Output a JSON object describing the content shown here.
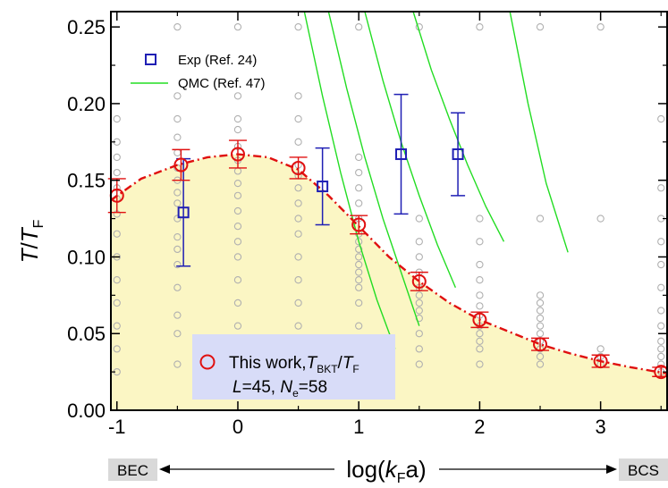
{
  "chart_data": {
    "type": "scatter",
    "xlim": [
      -1.05,
      3.55
    ],
    "ylim": [
      0,
      0.26
    ],
    "xticks": [
      -1,
      0,
      1,
      2,
      3
    ],
    "xtick_labels": [
      "-1",
      "0",
      "1",
      "2",
      "3"
    ],
    "yticks": [
      0,
      0.05,
      0.1,
      0.15,
      0.2,
      0.25
    ],
    "ytick_labels": [
      "0.00",
      "0.05",
      "0.10",
      "0.15",
      "0.20",
      "0.25"
    ],
    "xlabel": {
      "pre": "log(",
      "italic": "k",
      "sub": "F",
      "post": "a)"
    },
    "ylabel": {
      "italic": "T",
      "slash": "/",
      "italic2": "T",
      "sub": "F"
    },
    "end_labels": {
      "left": "BEC",
      "right": "BCS"
    },
    "series": [
      {
        "name": "Exp (Ref. 24)",
        "marker": "square",
        "color": "#1f1fb4",
        "points": [
          {
            "x": -0.45,
            "y": 0.129,
            "err": 0.035
          },
          {
            "x": 0.7,
            "y": 0.146,
            "err": 0.025
          },
          {
            "x": 1.35,
            "y": 0.167,
            "err": 0.039
          },
          {
            "x": 1.82,
            "y": 0.167,
            "err": 0.027
          }
        ]
      },
      {
        "name": "QMC (Ref. 47)",
        "marker": "line",
        "color": "#22dd22",
        "curves": [
          [
            [
              0.55,
              0.26
            ],
            [
              0.7,
              0.205
            ],
            [
              0.85,
              0.155
            ],
            [
              1.0,
              0.11
            ],
            [
              1.15,
              0.072
            ],
            [
              1.3,
              0.04
            ]
          ],
          [
            [
              0.75,
              0.26
            ],
            [
              0.9,
              0.21
            ],
            [
              1.05,
              0.165
            ],
            [
              1.2,
              0.125
            ],
            [
              1.35,
              0.09
            ],
            [
              1.5,
              0.055
            ]
          ],
          [
            [
              1.05,
              0.26
            ],
            [
              1.2,
              0.215
            ],
            [
              1.35,
              0.175
            ],
            [
              1.5,
              0.14
            ],
            [
              1.65,
              0.108
            ],
            [
              1.8,
              0.08
            ]
          ],
          [
            [
              1.45,
              0.26
            ],
            [
              1.6,
              0.222
            ],
            [
              1.75,
              0.19
            ],
            [
              1.9,
              0.16
            ],
            [
              2.05,
              0.133
            ],
            [
              2.2,
              0.11
            ]
          ],
          [
            [
              2.25,
              0.26
            ],
            [
              2.4,
              0.2
            ],
            [
              2.55,
              0.148
            ],
            [
              2.73,
              0.103
            ]
          ]
        ]
      },
      {
        "name": "This work",
        "marker": "circle",
        "color": "#e01010",
        "points": [
          {
            "x": -1.0,
            "y": 0.14,
            "err": 0.011
          },
          {
            "x": -0.47,
            "y": 0.16,
            "err": 0.01
          },
          {
            "x": 0.0,
            "y": 0.167,
            "err": 0.009
          },
          {
            "x": 0.5,
            "y": 0.158,
            "err": 0.007
          },
          {
            "x": 1.0,
            "y": 0.121,
            "err": 0.006
          },
          {
            "x": 1.5,
            "y": 0.084,
            "err": 0.006
          },
          {
            "x": 2.0,
            "y": 0.059,
            "err": 0.005
          },
          {
            "x": 2.5,
            "y": 0.043,
            "err": 0.004
          },
          {
            "x": 3.0,
            "y": 0.032,
            "err": 0.004
          },
          {
            "x": 3.5,
            "y": 0.025,
            "err": 0.003
          }
        ],
        "fit": [
          [
            -1.05,
            0.137
          ],
          [
            -0.8,
            0.151
          ],
          [
            -0.5,
            0.16
          ],
          [
            -0.25,
            0.165
          ],
          [
            0.0,
            0.167
          ],
          [
            0.25,
            0.165
          ],
          [
            0.5,
            0.157
          ],
          [
            0.75,
            0.14
          ],
          [
            1.0,
            0.12
          ],
          [
            1.25,
            0.1
          ],
          [
            1.5,
            0.084
          ],
          [
            1.75,
            0.07
          ],
          [
            2.0,
            0.059
          ],
          [
            2.25,
            0.051
          ],
          [
            2.5,
            0.043
          ],
          [
            2.75,
            0.037
          ],
          [
            3.0,
            0.032
          ],
          [
            3.25,
            0.028
          ],
          [
            3.55,
            0.024
          ]
        ]
      }
    ],
    "grid_columns": [
      {
        "x": -1.0,
        "ys": [
          0.025,
          0.04,
          0.055,
          0.07,
          0.085,
          0.1,
          0.115,
          0.128,
          0.138,
          0.145,
          0.155,
          0.165,
          0.175,
          0.19
        ]
      },
      {
        "x": -0.5,
        "ys": [
          0.03,
          0.05,
          0.062,
          0.08,
          0.095,
          0.105,
          0.113,
          0.125,
          0.135,
          0.142,
          0.15,
          0.158,
          0.168,
          0.178,
          0.19,
          0.205,
          0.25
        ]
      },
      {
        "x": 0.0,
        "ys": [
          0.025,
          0.04,
          0.055,
          0.07,
          0.085,
          0.1,
          0.11,
          0.12,
          0.13,
          0.14,
          0.148,
          0.156,
          0.163,
          0.172,
          0.183,
          0.19,
          0.205,
          0.25
        ]
      },
      {
        "x": 0.5,
        "ys": [
          0.025,
          0.04,
          0.055,
          0.07,
          0.085,
          0.1,
          0.115,
          0.125,
          0.135,
          0.145,
          0.153,
          0.16,
          0.175,
          0.19,
          0.205,
          0.25
        ]
      },
      {
        "x": 1.0,
        "ys": [
          0.025,
          0.04,
          0.055,
          0.07,
          0.08,
          0.085,
          0.09,
          0.095,
          0.1,
          0.105,
          0.11,
          0.115,
          0.125,
          0.135,
          0.145,
          0.155,
          0.165,
          0.25
        ]
      },
      {
        "x": 1.5,
        "ys": [
          0.03,
          0.04,
          0.05,
          0.06,
          0.065,
          0.07,
          0.075,
          0.08,
          0.09,
          0.1,
          0.11,
          0.125,
          0.25
        ]
      },
      {
        "x": 2.0,
        "ys": [
          0.03,
          0.04,
          0.045,
          0.05,
          0.055,
          0.062,
          0.068,
          0.075,
          0.085,
          0.095,
          0.11,
          0.125,
          0.25
        ]
      },
      {
        "x": 2.5,
        "ys": [
          0.03,
          0.035,
          0.04,
          0.045,
          0.05,
          0.055,
          0.06,
          0.065,
          0.07,
          0.075,
          0.125,
          0.25
        ]
      },
      {
        "x": 3.0,
        "ys": [
          0.03,
          0.035,
          0.04,
          0.125,
          0.25
        ]
      },
      {
        "x": 3.5,
        "ys": [
          0.025,
          0.03,
          0.035,
          0.04,
          0.045,
          0.055,
          0.065,
          0.08,
          0.095,
          0.11,
          0.125,
          0.145,
          0.19
        ]
      }
    ],
    "legend_top": [
      {
        "label": "Exp (Ref. 24)"
      },
      {
        "label": "QMC (Ref. 47)"
      }
    ],
    "legend_bottom": {
      "line1": {
        "text": "This work,",
        "italic": "T",
        "sub": "BKT",
        "slash": "/",
        "italic2": "T",
        "sub2": "F"
      },
      "line2": {
        "italic": "L",
        "eq1": "=45, ",
        "italic2": "N",
        "sub": "e",
        "eq2": "=58"
      }
    },
    "colors": {
      "fill": "#fbf6c4",
      "grid_marker": "#b0b0b0",
      "fit_line": "#e01010",
      "legend_box": "#d8dcf8"
    }
  }
}
